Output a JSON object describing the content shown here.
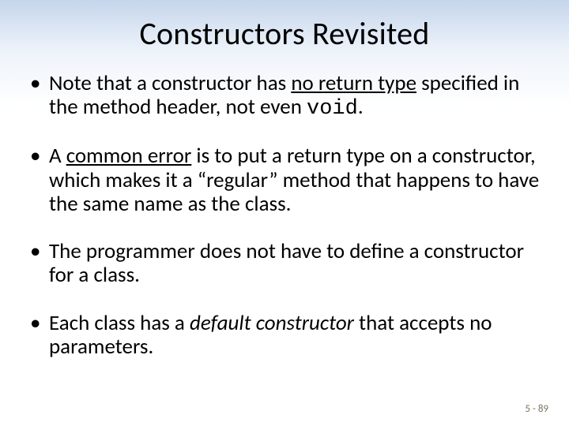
{
  "slide": {
    "title": "Constructors Revisited",
    "background": {
      "gradient_top": "#c5d5eb",
      "gradient_mid": "#eef3fa",
      "gradient_bottom": "#ffffff"
    },
    "title_fontsize": 40,
    "body_fontsize": 27,
    "bullets": [
      {
        "pre": "Note that a constructor has ",
        "underline": "no return type",
        "post1": " specified in the method header, not even ",
        "code": "void",
        "post2": "."
      },
      {
        "pre": "A ",
        "underline": "common error",
        "post": " is to put a return type on a constructor, which makes it a “regular” method that happens to have the same name as the class."
      },
      {
        "text": "The programmer does not have to define a constructor for a class."
      },
      {
        "pre": "Each class has a ",
        "italic": "default constructor",
        "post": " that accepts no parameters."
      }
    ],
    "footer": "5 - 89",
    "footer_color": "#7c7260"
  }
}
